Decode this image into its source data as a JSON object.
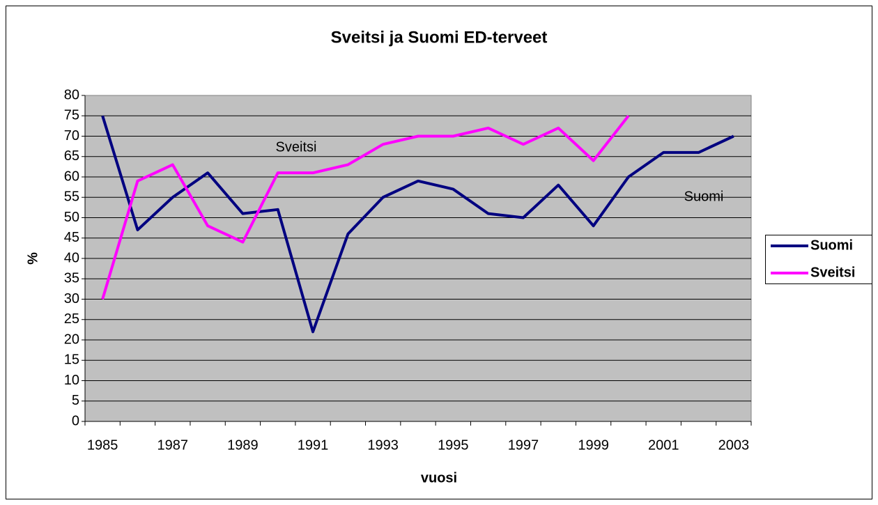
{
  "chart_data": {
    "type": "line",
    "title": "Sveitsi ja Suomi ED-terveet",
    "x_label": "vuosi",
    "y_label": "%",
    "categories": [
      "1985",
      null,
      "1987",
      null,
      "1989",
      null,
      "1991",
      null,
      "1993",
      null,
      "1995",
      null,
      "1997",
      null,
      "1999",
      null,
      "2001",
      null,
      "2003"
    ],
    "series": [
      {
        "name": "Suomi",
        "color": "#000080",
        "values": [
          75,
          47,
          55,
          61,
          51,
          52,
          22,
          46,
          55,
          59,
          57,
          51,
          50,
          58,
          48,
          60,
          66,
          66,
          70
        ]
      },
      {
        "name": "Sveitsi",
        "color": "#ff00ff",
        "values": [
          30,
          59,
          63,
          48,
          44,
          61,
          61,
          63,
          68,
          70,
          70,
          72,
          68,
          72,
          64,
          75,
          null,
          null,
          null
        ]
      }
    ],
    "annotations": [
      "Sveitsi",
      "Suomi"
    ],
    "ylim": [
      0,
      80
    ],
    "yticks": [
      0,
      5,
      10,
      15,
      20,
      25,
      30,
      35,
      40,
      45,
      50,
      55,
      60,
      65,
      70,
      75,
      80
    ],
    "grid": true,
    "legend": "right"
  }
}
